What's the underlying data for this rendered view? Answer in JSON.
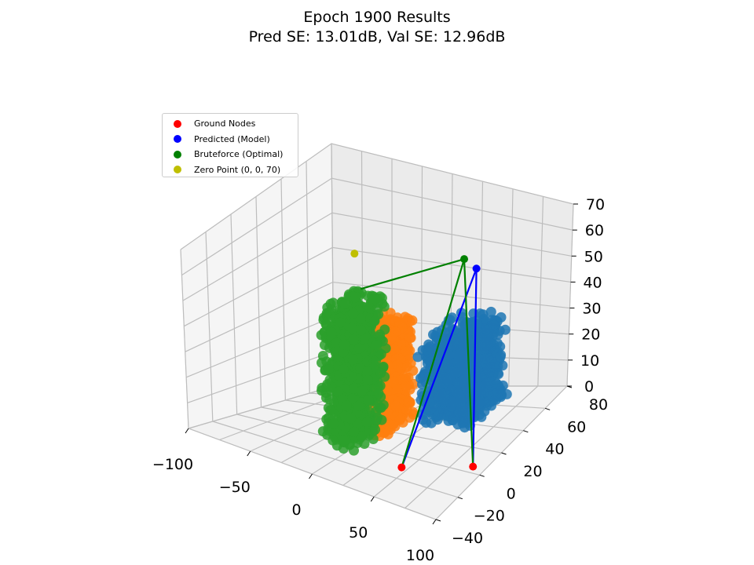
{
  "chart_data": {
    "type": "scatter",
    "title_line1": "Epoch 1900 Results",
    "title_line2": "Pred SE: 13.01dB, Val SE: 12.96dB",
    "xlabel": "",
    "ylabel": "",
    "zlabel": "",
    "xlim": [
      -100,
      100
    ],
    "ylim": [
      -40,
      80
    ],
    "zlim": [
      0,
      70
    ],
    "x_ticks": [
      "−100",
      "−50",
      "0",
      "50",
      "100"
    ],
    "y_ticks": [
      "−40",
      "−20",
      "0",
      "20",
      "40",
      "60",
      "80"
    ],
    "z_ticks": [
      "0",
      "10",
      "20",
      "30",
      "40",
      "50",
      "60",
      "70"
    ],
    "grid": true,
    "legend_position": "upper-left",
    "legend": [
      {
        "label": "Ground Nodes",
        "color": "#ff0000"
      },
      {
        "label": "Predicted (Model)",
        "color": "#0000ff"
      },
      {
        "label": "Bruteforce (Optimal)",
        "color": "#008000"
      },
      {
        "label": "Zero Point (0, 0, 70)",
        "color": "#bfbf00"
      }
    ],
    "ground_nodes": [
      [
        45,
        -10,
        0
      ],
      [
        90,
        5,
        0
      ]
    ],
    "predicted_point": [
      55,
      45,
      55
    ],
    "bruteforce_point": [
      40,
      50,
      55
    ],
    "zero_point": [
      0,
      0,
      70
    ],
    "clusters": [
      {
        "color": "#1f77b4",
        "x_range": [
          20,
          60
        ],
        "y_range": [
          30,
          70
        ],
        "z_range": [
          0,
          30
        ]
      },
      {
        "color": "#ff7f0e",
        "x_range": [
          -20,
          10
        ],
        "y_range": [
          10,
          40
        ],
        "z_range": [
          0,
          35
        ]
      },
      {
        "color": "#2ca02c",
        "x_range": [
          -20,
          5
        ],
        "y_range": [
          -10,
          20
        ],
        "z_range": [
          0,
          50
        ]
      }
    ],
    "colors": {
      "ground": "#ff0000",
      "predicted": "#0000ff",
      "bruteforce": "#008000",
      "zero": "#bfbf00"
    }
  }
}
